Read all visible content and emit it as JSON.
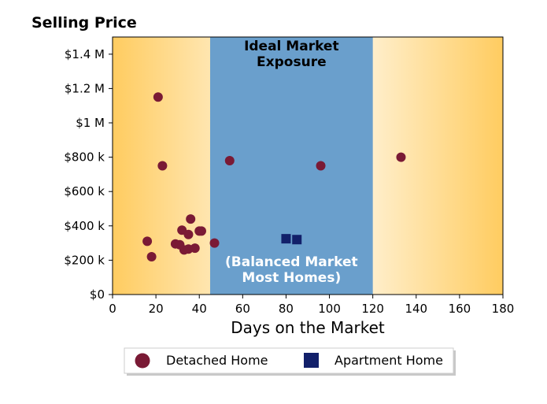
{
  "chart_data": {
    "type": "scatter",
    "title": "Selling Price",
    "xlabel": "Days on the Market",
    "ylabel": "",
    "xlim": [
      0,
      180
    ],
    "ylim": [
      0,
      1500000
    ],
    "x_ticks": [
      0,
      20,
      40,
      60,
      80,
      100,
      120,
      140,
      160,
      180
    ],
    "x_tick_labels": [
      "0",
      "20",
      "40",
      "60",
      "80",
      "100",
      "120",
      "140",
      "160",
      "180"
    ],
    "y_ticks": [
      0,
      200000,
      400000,
      600000,
      800000,
      1000000,
      1200000,
      1400000
    ],
    "y_tick_labels": [
      "$0",
      "$200 k",
      "$400 k",
      "$600 k",
      "$800 k",
      "$1 M",
      "$1.2 M",
      "$1.4 M"
    ],
    "grid": false,
    "zones": [
      {
        "x_range": [
          45,
          120
        ],
        "color": "#6a9fcc",
        "label_top": "Ideal Market\nExposure",
        "label_bottom": "(Balanced Market\nMost Homes)"
      }
    ],
    "background_gradient": {
      "edge_color": "#ffcc60",
      "center_color": "#ffffff"
    },
    "legend_position": "bottom-center",
    "series": [
      {
        "name": "Detached Home",
        "marker": "circle",
        "color": "#7a1a35",
        "points": [
          {
            "x": 21,
            "y": 1150000
          },
          {
            "x": 23,
            "y": 750000
          },
          {
            "x": 16,
            "y": 310000
          },
          {
            "x": 18,
            "y": 220000
          },
          {
            "x": 29,
            "y": 295000
          },
          {
            "x": 31,
            "y": 290000
          },
          {
            "x": 32,
            "y": 375000
          },
          {
            "x": 33,
            "y": 260000
          },
          {
            "x": 35,
            "y": 350000
          },
          {
            "x": 35,
            "y": 265000
          },
          {
            "x": 36,
            "y": 440000
          },
          {
            "x": 38,
            "y": 270000
          },
          {
            "x": 40,
            "y": 370000
          },
          {
            "x": 41,
            "y": 370000
          },
          {
            "x": 47,
            "y": 300000
          },
          {
            "x": 54,
            "y": 780000
          },
          {
            "x": 96,
            "y": 750000
          },
          {
            "x": 133,
            "y": 800000
          }
        ]
      },
      {
        "name": "Apartment Home",
        "marker": "square",
        "color": "#12206a",
        "points": [
          {
            "x": 80,
            "y": 325000
          },
          {
            "x": 85,
            "y": 320000
          }
        ]
      }
    ]
  }
}
